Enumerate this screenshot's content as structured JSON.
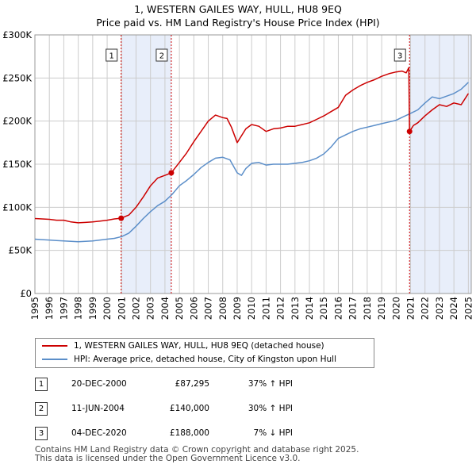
{
  "title_line1": "1, WESTERN GAILES WAY, HULL, HU8 9EQ",
  "title_line2": "Price paid vs. HM Land Registry's House Price Index (HPI)",
  "colors": {
    "property": "#cc0000",
    "hpi": "#5b8ec9",
    "shade": "#e8eefa",
    "grid": "#cccccc",
    "marker": "#cc0000"
  },
  "chart_data": {
    "type": "line",
    "x_range": [
      1995,
      2025.2
    ],
    "y_range": [
      0,
      300000
    ],
    "y_ticks": [
      0,
      50000,
      100000,
      150000,
      200000,
      250000,
      300000
    ],
    "y_tick_labels": [
      "£0",
      "£50K",
      "£100K",
      "£150K",
      "£200K",
      "£250K",
      "£300K"
    ],
    "x_ticks": [
      "1995",
      "1996",
      "1997",
      "1998",
      "1999",
      "2000",
      "2001",
      "2002",
      "2003",
      "2004",
      "2005",
      "2006",
      "2007",
      "2008",
      "2009",
      "2010",
      "2011",
      "2012",
      "2013",
      "2014",
      "2015",
      "2016",
      "2017",
      "2018",
      "2019",
      "2020",
      "2021",
      "2022",
      "2023",
      "2024",
      "2025"
    ],
    "series": [
      {
        "name": "1, WESTERN GAILES WAY, HULL, HU8 9EQ (detached house)",
        "color": "#cc0000",
        "x": [
          1995,
          1995.5,
          1996,
          1996.5,
          1997,
          1997.5,
          1998,
          1998.5,
          1999,
          1999.5,
          2000,
          2000.5,
          2000.97,
          2001.5,
          2002,
          2002.5,
          2003,
          2003.5,
          2004,
          2004.44,
          2005,
          2005.5,
          2006,
          2006.5,
          2007,
          2007.5,
          2008,
          2008.3,
          2008.6,
          2009,
          2009.3,
          2009.6,
          2010,
          2010.5,
          2011,
          2011.5,
          2012,
          2012.5,
          2013,
          2013.5,
          2014,
          2014.5,
          2015,
          2015.5,
          2016,
          2016.5,
          2017,
          2017.5,
          2018,
          2018.5,
          2019,
          2019.5,
          2020,
          2020.4,
          2020.7,
          2020.88,
          2020.93,
          2021.2,
          2021.5,
          2022,
          2022.5,
          2023,
          2023.5,
          2024,
          2024.5,
          2025
        ],
        "y": [
          87000,
          86500,
          86000,
          85000,
          85000,
          83000,
          82000,
          82500,
          83000,
          84000,
          85000,
          86500,
          87295,
          91000,
          100000,
          112000,
          125000,
          134000,
          137000,
          140000,
          152000,
          163000,
          176000,
          188000,
          200000,
          207000,
          204000,
          203000,
          193000,
          175000,
          183000,
          191000,
          196000,
          194000,
          188000,
          191000,
          192000,
          194000,
          194000,
          196000,
          198000,
          202000,
          206000,
          211000,
          216000,
          230000,
          236000,
          241000,
          245000,
          248000,
          252000,
          255000,
          257000,
          258000,
          256000,
          262000,
          188000,
          195000,
          198000,
          206000,
          213000,
          219000,
          217000,
          221000,
          219000,
          232000
        ]
      },
      {
        "name": "HPI: Average price, detached house, City of Kingston upon Hull",
        "color": "#5b8ec9",
        "x": [
          1995,
          1995.5,
          1996,
          1996.5,
          1997,
          1997.5,
          1998,
          1998.5,
          1999,
          1999.5,
          2000,
          2000.5,
          2001,
          2001.5,
          2002,
          2002.5,
          2003,
          2003.5,
          2004,
          2004.5,
          2005,
          2005.5,
          2006,
          2006.5,
          2007,
          2007.5,
          2008,
          2008.5,
          2009,
          2009.3,
          2009.6,
          2010,
          2010.5,
          2011,
          2011.5,
          2012,
          2012.5,
          2013,
          2013.5,
          2014,
          2014.5,
          2015,
          2015.5,
          2016,
          2016.5,
          2017,
          2017.5,
          2018,
          2018.5,
          2019,
          2019.5,
          2020,
          2020.5,
          2021,
          2021.5,
          2022,
          2022.5,
          2023,
          2023.5,
          2024,
          2024.5,
          2025
        ],
        "y": [
          63000,
          62500,
          62000,
          61500,
          61000,
          60500,
          60000,
          60500,
          61000,
          62000,
          63000,
          64000,
          66000,
          70000,
          78000,
          87000,
          95000,
          102000,
          107000,
          115000,
          125000,
          131000,
          138000,
          146000,
          152000,
          157000,
          158000,
          155000,
          140000,
          137000,
          145000,
          151000,
          152000,
          149000,
          150000,
          150000,
          150000,
          151000,
          152000,
          154000,
          157000,
          162000,
          170000,
          180000,
          184000,
          188000,
          191000,
          193000,
          195000,
          197000,
          199000,
          201000,
          205000,
          209000,
          213000,
          221000,
          228000,
          226000,
          229000,
          232000,
          237000,
          245000
        ]
      }
    ],
    "sales": [
      {
        "id": "1",
        "x": 2000.97,
        "y": 87295
      },
      {
        "id": "2",
        "x": 2004.44,
        "y": 140000
      },
      {
        "id": "3",
        "x": 2020.93,
        "y": 188000
      }
    ],
    "shaded_ranges": [
      [
        2000.97,
        2004.44
      ],
      [
        2020.93,
        2025.2
      ]
    ]
  },
  "legend": {
    "property_label": "1, WESTERN GAILES WAY, HULL, HU8 9EQ (detached house)",
    "hpi_label": "HPI: Average price, detached house, City of Kingston upon Hull"
  },
  "transactions": [
    {
      "num": "1",
      "date": "20-DEC-2000",
      "price": "£87,295",
      "hpi": "37% ↑ HPI"
    },
    {
      "num": "2",
      "date": "11-JUN-2004",
      "price": "£140,000",
      "hpi": "30% ↑ HPI"
    },
    {
      "num": "3",
      "date": "04-DEC-2020",
      "price": "£188,000",
      "hpi": "7% ↓ HPI"
    }
  ],
  "footer_line1": "Contains HM Land Registry data © Crown copyright and database right 2025.",
  "footer_line2": "This data is licensed under the Open Government Licence v3.0."
}
